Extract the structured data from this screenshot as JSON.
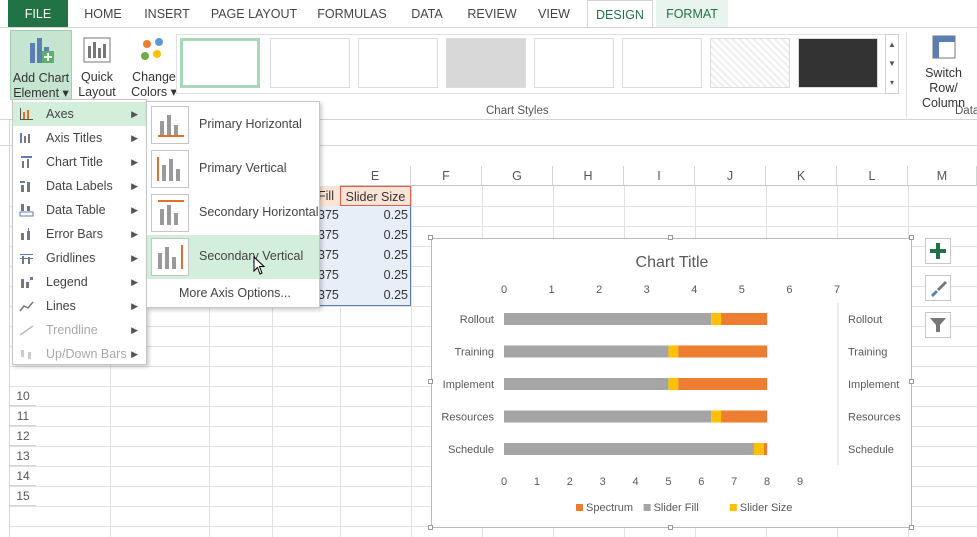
{
  "tabs": [
    {
      "label": "FILE"
    },
    {
      "label": "HOME"
    },
    {
      "label": "INSERT"
    },
    {
      "label": "PAGE LAYOUT"
    },
    {
      "label": "FORMULAS"
    },
    {
      "label": "DATA"
    },
    {
      "label": "REVIEW"
    },
    {
      "label": "VIEW"
    },
    {
      "label": "DESIGN"
    },
    {
      "label": "FORMAT"
    }
  ],
  "ribbon": {
    "add_chart_element": [
      "Add Chart",
      "Element"
    ],
    "quick_layout": [
      "Quick",
      "Layout"
    ],
    "change_colors": [
      "Change",
      "Colors"
    ],
    "chart_styles_label": "Chart Styles",
    "switch_row_column": [
      "Switch Row/",
      "Column"
    ],
    "data_label_partial": "Data"
  },
  "chart_element_menu": [
    {
      "label": "Axes",
      "enabled": true
    },
    {
      "label": "Axis Titles",
      "enabled": true
    },
    {
      "label": "Chart Title",
      "enabled": true
    },
    {
      "label": "Data Labels",
      "enabled": true
    },
    {
      "label": "Data Table",
      "enabled": true
    },
    {
      "label": "Error Bars",
      "enabled": true
    },
    {
      "label": "Gridlines",
      "enabled": true
    },
    {
      "label": "Legend",
      "enabled": true
    },
    {
      "label": "Lines",
      "enabled": true
    },
    {
      "label": "Trendline",
      "enabled": false
    },
    {
      "label": "Up/Down Bars",
      "enabled": false
    }
  ],
  "axes_submenu": [
    {
      "label": "Primary Horizontal"
    },
    {
      "label": "Primary Vertical"
    },
    {
      "label": "Secondary Horizontal"
    },
    {
      "label": "Secondary Vertical"
    }
  ],
  "axes_more": "More Axis Options...",
  "columns": [
    "E",
    "F",
    "G",
    "H",
    "I",
    "J",
    "K",
    "L",
    "M"
  ],
  "rows": [
    "10",
    "11",
    "12",
    "13",
    "14",
    "15"
  ],
  "cells": {
    "d_header_partial": "Fill",
    "e_header": "Slider Size",
    "d_values": [
      "375",
      "375",
      "375",
      "375",
      "375"
    ],
    "e_values": [
      "0.25",
      "0.25",
      "0.25",
      "0.25",
      "0.25"
    ]
  },
  "colors": {
    "excel_green": "#217346",
    "spectrum": "#ed7d31",
    "slider_fill": "#a5a5a5",
    "slider_size": "#ffc000"
  },
  "chart_data": {
    "type": "bar",
    "orientation": "horizontal-stacked",
    "title": "Chart Title",
    "categories": [
      "Rollout",
      "Training",
      "Implement",
      "Resources",
      "Schedule"
    ],
    "series": [
      {
        "name": "Slider Fill",
        "values": [
          6.3,
          5.0,
          5.0,
          6.3,
          7.6
        ]
      },
      {
        "name": "Slider Size",
        "values": [
          0.3,
          0.3,
          0.3,
          0.3,
          0.3
        ]
      },
      {
        "name": "Spectrum",
        "values": [
          1.4,
          2.7,
          2.7,
          1.4,
          0.1
        ]
      }
    ],
    "legend_order": [
      "Spectrum",
      "Slider Fill",
      "Slider Size"
    ],
    "xlim": [
      0,
      9
    ],
    "x_ticks": [
      "0",
      "1",
      "2",
      "3",
      "4",
      "5",
      "6",
      "7",
      "8",
      "9"
    ],
    "secondary_xlim": [
      0,
      7
    ],
    "secondary_x_ticks": [
      "0",
      "1",
      "2",
      "3",
      "4",
      "5",
      "6",
      "7"
    ],
    "legend_position": "bottom"
  }
}
